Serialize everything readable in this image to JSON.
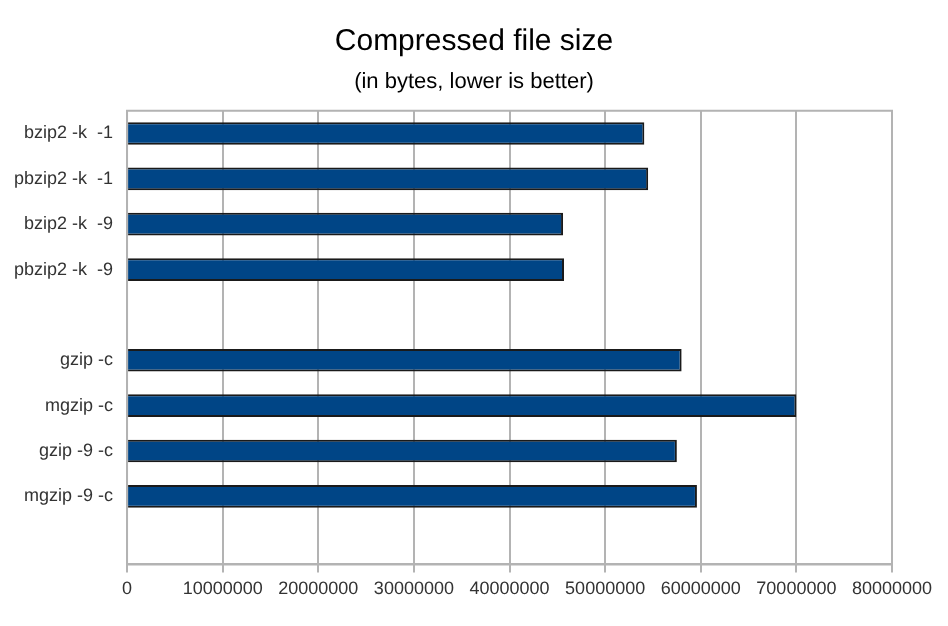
{
  "chart_data": {
    "type": "bar",
    "orientation": "horizontal",
    "title": "Compressed file size",
    "subtitle": "(in bytes, lower is better)",
    "categories": [
      "bzip2 -k  -1",
      "pbzip2 -k  -1",
      "bzip2 -k  -9",
      "pbzip2 -k  -9",
      null,
      "gzip -c",
      "mgzip -c",
      "gzip -9 -c",
      "mgzip -9 -c",
      null
    ],
    "values": [
      54100000,
      54500000,
      45600000,
      45700000,
      null,
      58000000,
      70000000,
      57500000,
      59600000,
      null
    ],
    "color": "#004586",
    "xlim": [
      0,
      80000000
    ],
    "xticks": [
      0,
      10000000,
      20000000,
      30000000,
      40000000,
      50000000,
      60000000,
      70000000,
      80000000
    ],
    "grid": "x",
    "legend": false
  }
}
